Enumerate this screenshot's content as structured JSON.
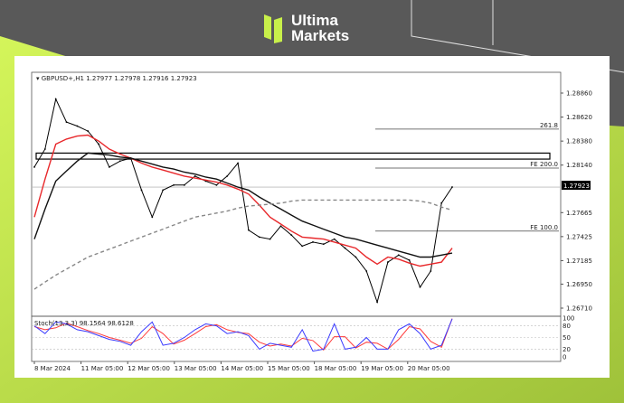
{
  "brand": {
    "name_line1": "Ultima",
    "name_line2": "Markets",
    "accent": "#c8f04a",
    "background": "#595959"
  },
  "chart_data": {
    "type": "line",
    "title": "GBPUSD+,H1",
    "ohlc_readout": "1.27977 1.27978 1.27916 1.27923",
    "current_price": "1.27923",
    "x_tick_labels": [
      "8 Mar 2024",
      "11 Mar 05:00",
      "12 Mar 05:00",
      "13 Mar 05:00",
      "14 Mar 05:00",
      "15 Mar 05:00",
      "18 Mar 05:00",
      "19 Mar 05:00",
      "20 Mar 05:00"
    ],
    "y_tick_labels": [
      "1.28860",
      "1.28620",
      "1.28380",
      "1.28140",
      "1.27665",
      "1.27425",
      "1.27185",
      "1.26950",
      "1.26710"
    ],
    "ylim": [
      1.2665,
      1.29
    ],
    "series": [
      {
        "kind": "price",
        "color": "#000000",
        "values": [
          1.2812,
          1.283,
          1.288,
          1.2857,
          1.2853,
          1.2848,
          1.2835,
          1.2812,
          1.2818,
          1.2821,
          1.2789,
          1.2762,
          1.2789,
          1.2794,
          1.2794,
          1.2803,
          1.2798,
          1.2794,
          1.2803,
          1.2816,
          1.2749,
          1.2742,
          1.274,
          1.2753,
          1.2744,
          1.2733,
          1.2737,
          1.2735,
          1.274,
          1.2731,
          1.2722,
          1.2708,
          1.2677,
          1.2717,
          1.2724,
          1.2719,
          1.2692,
          1.2708,
          1.2776,
          1.2792
        ]
      },
      {
        "kind": "ma-fast",
        "color": "#e8282b",
        "values": [
          1.2762,
          1.28,
          1.2835,
          1.284,
          1.2843,
          1.2844,
          1.2838,
          1.283,
          1.2825,
          1.2821,
          1.2816,
          1.2812,
          1.2809,
          1.2806,
          1.2803,
          1.2801,
          1.2799,
          1.2797,
          1.2794,
          1.279,
          1.2785,
          1.2774,
          1.2762,
          1.2755,
          1.2748,
          1.2742,
          1.2741,
          1.274,
          1.2737,
          1.2734,
          1.2731,
          1.2722,
          1.2715,
          1.2722,
          1.272,
          1.2716,
          1.2713,
          1.2715,
          1.2717,
          1.2731
        ]
      },
      {
        "kind": "ma-slow",
        "color": "#111111",
        "values": [
          1.274,
          1.277,
          1.2798,
          1.2808,
          1.2818,
          1.2826,
          1.2825,
          1.2824,
          1.2822,
          1.2821,
          1.2818,
          1.2815,
          1.2812,
          1.281,
          1.2807,
          1.2805,
          1.2802,
          1.28,
          1.2796,
          1.2792,
          1.2789,
          1.2782,
          1.2776,
          1.277,
          1.2764,
          1.2758,
          1.2754,
          1.275,
          1.2746,
          1.2742,
          1.274,
          1.2737,
          1.2734,
          1.2731,
          1.2728,
          1.2725,
          1.2722,
          1.2722,
          1.2724,
          1.2726
        ]
      },
      {
        "kind": "ma-long-dashed",
        "color": "#888888",
        "values": [
          1.269,
          1.2697,
          1.2704,
          1.271,
          1.2716,
          1.2722,
          1.2726,
          1.273,
          1.2734,
          1.2738,
          1.2742,
          1.2746,
          1.275,
          1.2754,
          1.2758,
          1.2762,
          1.2764,
          1.2766,
          1.2768,
          1.2771,
          1.2773,
          1.2774,
          1.2775,
          1.2776,
          1.2778,
          1.2779,
          1.2779,
          1.2779,
          1.2779,
          1.2779,
          1.2779,
          1.2779,
          1.2779,
          1.2779,
          1.2779,
          1.2779,
          1.2778,
          1.2776,
          1.2772,
          1.2769
        ]
      }
    ],
    "zone": {
      "high": 1.2826,
      "low": 1.282
    },
    "fib_levels": [
      {
        "label": "261.8",
        "price": 1.285
      },
      {
        "label": "FE 200.0",
        "price": 1.2811
      },
      {
        "label": "FE 100.0",
        "price": 1.2748
      }
    ],
    "stochastic": {
      "label": "Stoch(13,3,3) 98.1564 98.6128",
      "levels": [
        "100",
        "80",
        "50",
        "20",
        "0"
      ],
      "main": [
        80,
        60,
        90,
        85,
        70,
        65,
        55,
        45,
        40,
        30,
        65,
        90,
        30,
        35,
        50,
        70,
        85,
        80,
        60,
        65,
        55,
        20,
        35,
        30,
        25,
        70,
        15,
        20,
        85,
        20,
        25,
        50,
        20,
        20,
        70,
        85,
        60,
        20,
        30,
        98.2
      ],
      "signal": [
        78,
        70,
        75,
        87,
        78,
        68,
        60,
        50,
        43,
        35,
        48,
        78,
        60,
        33,
        43,
        60,
        78,
        83,
        70,
        63,
        60,
        38,
        28,
        33,
        28,
        48,
        42,
        18,
        52,
        52,
        23,
        38,
        35,
        20,
        45,
        78,
        72,
        40,
        25,
        98.6
      ],
      "main_color": "#3a3aff",
      "signal_color": "#ff3a3a"
    }
  }
}
